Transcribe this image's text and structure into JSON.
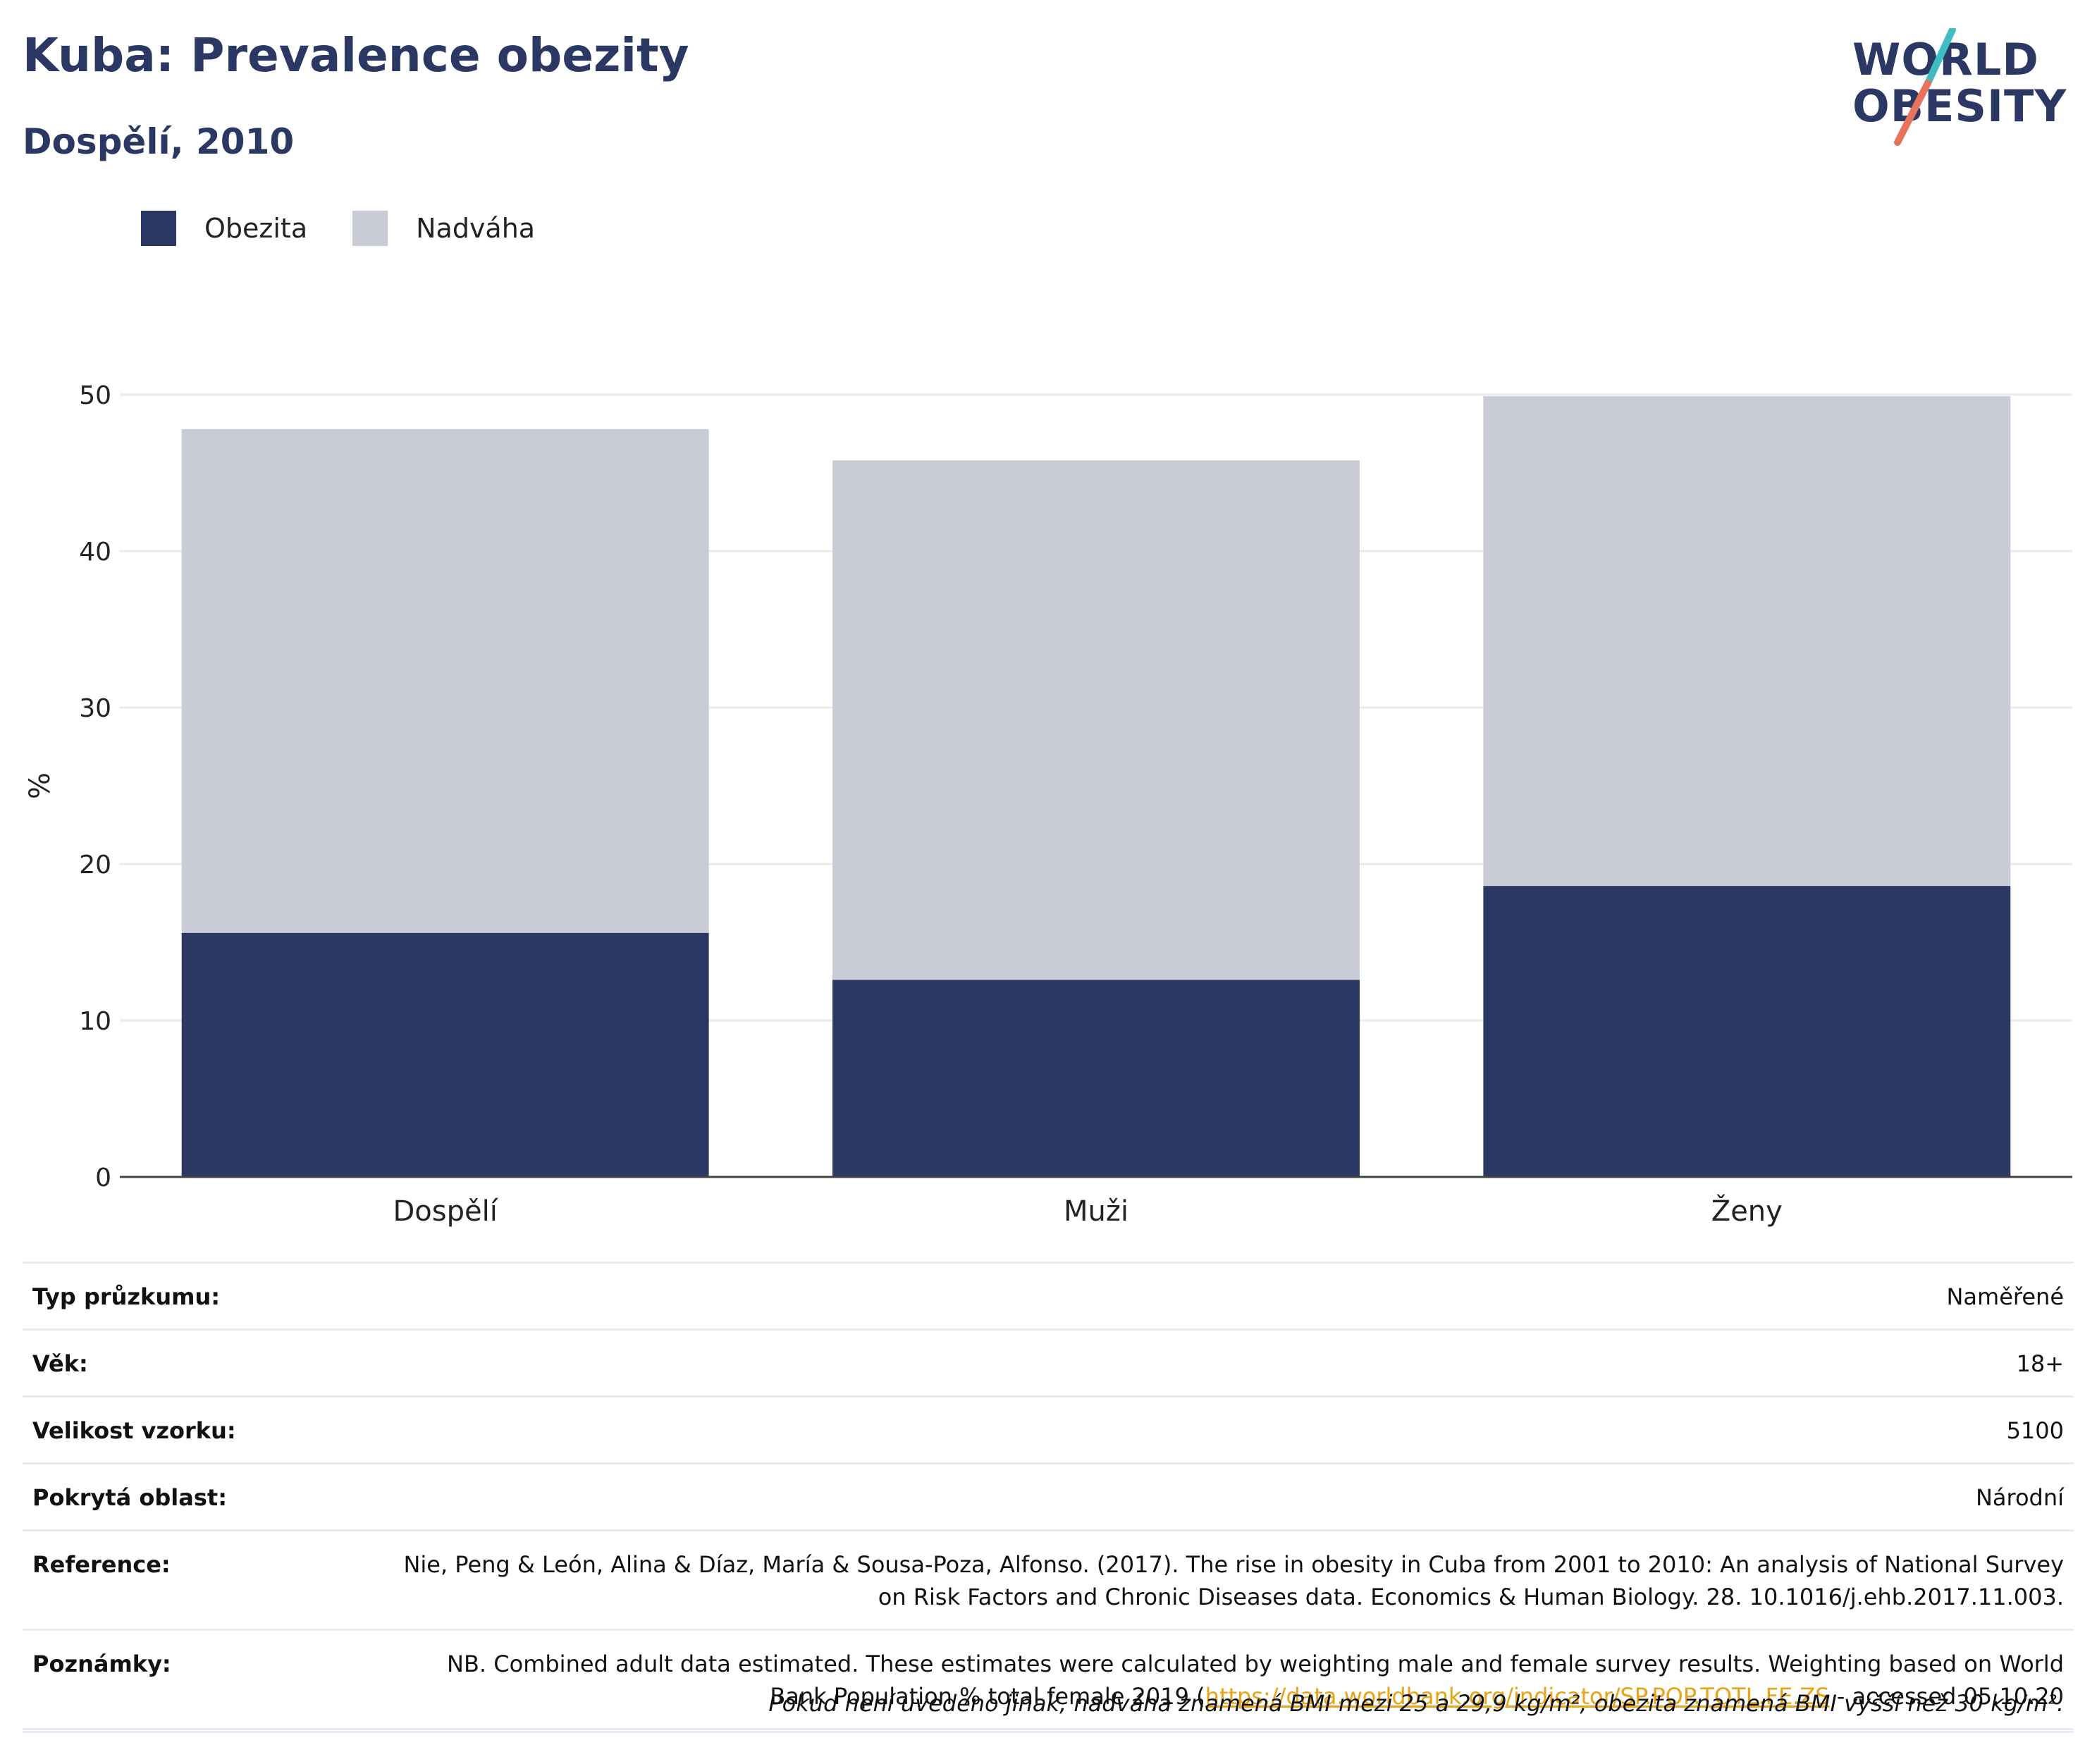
{
  "header": {
    "title": "Kuba: Prevalence obezity",
    "subtitle": "Dospělí, 2010"
  },
  "logo": {
    "line1": "WORLD",
    "line2": "OBESITY",
    "colors": {
      "text": "#2a3863",
      "slash_top": "#3fbdc2",
      "slash_bottom": "#e8735b"
    }
  },
  "legend": [
    {
      "label": "Obezita",
      "color": "#2a3863"
    },
    {
      "label": "Nadváha",
      "color": "#c9cbd6"
    }
  ],
  "chart_data": {
    "type": "bar",
    "stacked": true,
    "categories": [
      "Dospělí",
      "Muži",
      "Ženy"
    ],
    "series": [
      {
        "name": "Obezita",
        "color": "#2a3863",
        "values": [
          15.6,
          12.6,
          18.6
        ]
      },
      {
        "name": "Nadváha",
        "color": "#c9cbd6",
        "values": [
          32.2,
          33.2,
          31.3
        ]
      }
    ],
    "ylabel": "%",
    "ylim": [
      0,
      50
    ],
    "yticks": [
      0,
      10,
      20,
      30,
      40,
      50
    ],
    "grid": true,
    "legend_position": "top-left"
  },
  "info": {
    "rows": [
      {
        "label": "Typ průzkumu:",
        "value": "Naměřené"
      },
      {
        "label": "Věk:",
        "value": "18+"
      },
      {
        "label": "Velikost vzorku:",
        "value": "5100"
      },
      {
        "label": "Pokrytá oblast:",
        "value": "Národní"
      },
      {
        "label": "Reference:",
        "value": "Nie, Peng & León, Alina & Díaz, María & Sousa-Poza, Alfonso. (2017). The rise in obesity in Cuba from 2001 to 2010: An analysis of National Survey on Risk Factors and Chronic Diseases data. Economics & Human Biology. 28. 10.1016/j.ehb.2017.11.003."
      }
    ],
    "notes": {
      "label": "Poznámky:",
      "text_before": "NB. Combined adult data estimated. These estimates were calculated by weighting male and female survey results. Weighting based on World Bank Population % total female 2019 (",
      "link": "https://data.worldbank.org/indicator/SP.POP.TOTL.FE.ZS",
      "text_after": " - accessed 05.10.20"
    },
    "footnote": "Pokud není uvedeno jinak, nadváha znamená BMI mezi 25 a 29,9 kg/m², obezita znamená BMI vyšší než 30 kg/m²."
  }
}
